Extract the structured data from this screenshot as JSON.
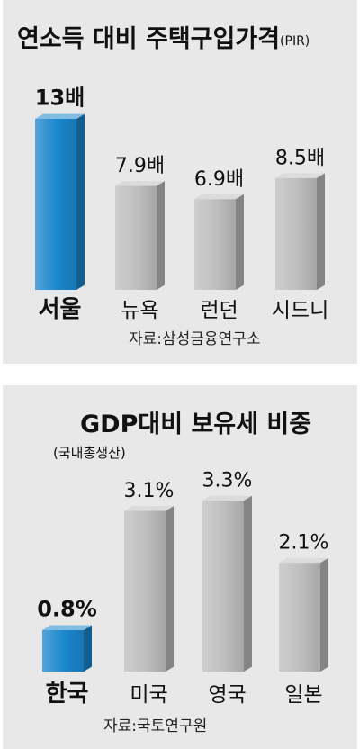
{
  "chart_data": [
    {
      "type": "bar",
      "title": "연소득 대비 주택구입가격",
      "title_suffix": "(PIR)",
      "categories": [
        "서울",
        "뉴욕",
        "런던",
        "시드니"
      ],
      "values": [
        13,
        7.9,
        6.9,
        8.5
      ],
      "value_labels": [
        "13배",
        "7.9배",
        "6.9배",
        "8.5배"
      ],
      "source": "자료:삼성금융연구소",
      "highlight_index": 0,
      "colors": {
        "highlight": "#1a86cc",
        "bar": "#bdbdbd",
        "background": "#e8e8e8"
      },
      "ylim": [
        0,
        13
      ],
      "grid": false
    },
    {
      "type": "bar",
      "title": "GDP대비 보유세 비중",
      "subtitle": "(국내총생산)",
      "categories": [
        "한국",
        "미국",
        "영국",
        "일본"
      ],
      "values": [
        0.8,
        3.1,
        3.3,
        2.1
      ],
      "value_labels": [
        "0.8%",
        "3.1%",
        "3.3%",
        "2.1%"
      ],
      "source": "자료:국토연구원",
      "highlight_index": 0,
      "colors": {
        "highlight": "#1a86cc",
        "bar": "#bdbdbd",
        "background": "#e8e8e8"
      },
      "ylim": [
        0,
        3.3
      ],
      "grid": false
    }
  ]
}
